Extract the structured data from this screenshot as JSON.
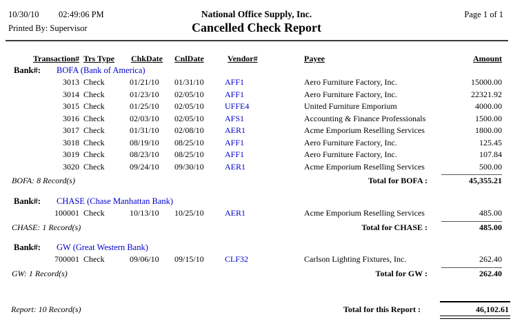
{
  "page": {
    "date": "10/30/10",
    "time": "02:49:06 PM",
    "printed_by": "Printed By: Supervisor",
    "company": "National Office Supply, Inc.",
    "report_title": "Cancelled Check Report",
    "page_label": "Page 1 of 1"
  },
  "colors": {
    "link_blue": "#0000CC",
    "text": "#000000"
  },
  "columns": [
    "Transaction#",
    "Trs Type",
    "ChkDate",
    "CnlDate",
    "Vendor#",
    "Payee",
    "Amount"
  ],
  "bank_label": "Bank#:",
  "banks": [
    {
      "name": "BOFA (Bank of America)",
      "rows": [
        {
          "txn": "3013",
          "type": "Check",
          "chk_date": "01/21/10",
          "cnl_date": "01/31/10",
          "vendor": "AFF1",
          "payee": "Aero Furniture Factory, Inc.",
          "amount": "15000.00"
        },
        {
          "txn": "3014",
          "type": "Check",
          "chk_date": "01/23/10",
          "cnl_date": "02/05/10",
          "vendor": "AFF1",
          "payee": "Aero Furniture Factory, Inc.",
          "amount": "22321.92"
        },
        {
          "txn": "3015",
          "type": "Check",
          "chk_date": "01/25/10",
          "cnl_date": "02/05/10",
          "vendor": "UFFE4",
          "payee": "United Furniture Emporium",
          "amount": "4000.00"
        },
        {
          "txn": "3016",
          "type": "Check",
          "chk_date": "02/03/10",
          "cnl_date": "02/05/10",
          "vendor": "AFS1",
          "payee": "Accounting & Finance Professionals",
          "amount": "1500.00"
        },
        {
          "txn": "3017",
          "type": "Check",
          "chk_date": "01/31/10",
          "cnl_date": "02/08/10",
          "vendor": "AER1",
          "payee": "Acme Emporium Reselling Services",
          "amount": "1800.00"
        },
        {
          "txn": "3018",
          "type": "Check",
          "chk_date": "08/19/10",
          "cnl_date": "08/25/10",
          "vendor": "AFF1",
          "payee": "Aero Furniture Factory, Inc.",
          "amount": "125.45"
        },
        {
          "txn": "3019",
          "type": "Check",
          "chk_date": "08/23/10",
          "cnl_date": "08/25/10",
          "vendor": "AFF1",
          "payee": "Aero Furniture Factory, Inc.",
          "amount": "107.84"
        },
        {
          "txn": "3020",
          "type": "Check",
          "chk_date": "09/24/10",
          "cnl_date": "09/30/10",
          "vendor": "AER1",
          "payee": "Acme Emporium Reselling Services",
          "amount": "500.00"
        }
      ],
      "records_label": "BOFA: 8 Record(s)",
      "total_label": "Total for BOFA :",
      "total_amount": "45,355.21"
    },
    {
      "name": "CHASE (Chase Manhattan Bank)",
      "rows": [
        {
          "txn": "100001",
          "type": "Check",
          "chk_date": "10/13/10",
          "cnl_date": "10/25/10",
          "vendor": "AER1",
          "payee": "Acme Emporium Reselling Services",
          "amount": "485.00"
        }
      ],
      "records_label": "CHASE: 1 Record(s)",
      "total_label": "Total for CHASE :",
      "total_amount": "485.00"
    },
    {
      "name": "GW (Great Western Bank)",
      "rows": [
        {
          "txn": "700001",
          "type": "Check",
          "chk_date": "09/06/10",
          "cnl_date": "09/15/10",
          "vendor": "CLF32",
          "payee": "Carlson Lighting Fixtures, Inc.",
          "amount": "262.40"
        }
      ],
      "records_label": "GW: 1 Record(s)",
      "total_label": "Total for GW :",
      "total_amount": "262.40"
    }
  ],
  "report_footer": {
    "records_label": "Report: 10 Record(s)",
    "total_label": "Total for this Report :",
    "total_amount": "46,102.61"
  }
}
